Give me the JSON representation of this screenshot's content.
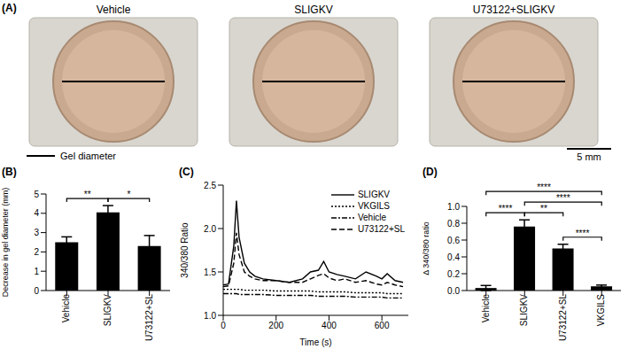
{
  "panel_a": {
    "title": "(A)",
    "panels": [
      "Vehicle",
      "SLIGKV",
      "U73122+SLIGKV"
    ],
    "legend_label": "Gel diameter",
    "scale_bar": "5 mm"
  },
  "chart_data": [
    {
      "type": "bar",
      "title": "(B)",
      "y_label": "Decrease in gel diameter (mm)",
      "categories": [
        "Vehicle",
        "SLIGKV",
        "U73122+SL"
      ],
      "values": [
        2.5,
        4.05,
        2.3
      ],
      "errors": [
        0.28,
        0.35,
        0.55
      ],
      "color": "#000000",
      "ylim": [
        0,
        5
      ],
      "yticks": [
        0,
        1,
        2,
        3,
        4,
        5
      ],
      "annotations": [
        {
          "between": [
            "Vehicle",
            "SLIGKV"
          ],
          "label": "**"
        },
        {
          "between": [
            "SLIGKV",
            "U73122+SL"
          ],
          "label": "*"
        }
      ]
    },
    {
      "type": "line",
      "title": "(C)",
      "x_label": "Time (s)",
      "y_label": "340/380 Ratio",
      "x": [
        0,
        20,
        40,
        50,
        60,
        80,
        100,
        120,
        150,
        200,
        250,
        300,
        330,
        360,
        380,
        400,
        430,
        460,
        500,
        540,
        580,
        600,
        620,
        650,
        680
      ],
      "xlim": [
        0,
        700
      ],
      "xticks": [
        0,
        200,
        400,
        600
      ],
      "ylim": [
        1.0,
        2.5
      ],
      "yticks": [
        {
          "value": 1.0,
          "label": "1.0"
        },
        1.5,
        {
          "value": 2.0,
          "label": "2.0"
        },
        2.5
      ],
      "legend": "upper right",
      "series": [
        {
          "name": "SLIGKV",
          "color": "#000000",
          "line_style": "solid",
          "values": [
            1.35,
            1.36,
            1.8,
            2.32,
            1.9,
            1.6,
            1.5,
            1.45,
            1.42,
            1.4,
            1.38,
            1.42,
            1.5,
            1.52,
            1.62,
            1.5,
            1.47,
            1.45,
            1.42,
            1.5,
            1.45,
            1.42,
            1.48,
            1.4,
            1.38
          ]
        },
        {
          "name": "VKGILS",
          "color": "#000000",
          "line_style": "dotted",
          "values": [
            1.3,
            1.3,
            1.3,
            1.3,
            1.3,
            1.29,
            1.29,
            1.29,
            1.29,
            1.28,
            1.28,
            1.28,
            1.28,
            1.27,
            1.27,
            1.27,
            1.27,
            1.27,
            1.26,
            1.26,
            1.26,
            1.26,
            1.25,
            1.25,
            1.25
          ]
        },
        {
          "name": "Vehicle",
          "color": "#000000",
          "line_style": "dashdot",
          "values": [
            1.25,
            1.25,
            1.25,
            1.25,
            1.24,
            1.24,
            1.24,
            1.24,
            1.24,
            1.23,
            1.23,
            1.23,
            1.23,
            1.22,
            1.22,
            1.22,
            1.22,
            1.22,
            1.21,
            1.21,
            1.21,
            1.21,
            1.2,
            1.2,
            1.2
          ]
        },
        {
          "name": "U73122+SL",
          "color": "#000000",
          "line_style": "dashed",
          "values": [
            1.33,
            1.34,
            1.6,
            1.95,
            1.7,
            1.5,
            1.45,
            1.42,
            1.4,
            1.4,
            1.38,
            1.38,
            1.42,
            1.46,
            1.48,
            1.43,
            1.4,
            1.42,
            1.38,
            1.4,
            1.36,
            1.35,
            1.38,
            1.35,
            1.33
          ]
        }
      ]
    },
    {
      "type": "bar",
      "title": "(D)",
      "y_label": "Δ 340/380 ratio",
      "categories": [
        "Vehicle",
        "SLIGKV",
        "U73122+SL",
        "VKGILS"
      ],
      "values": [
        0.03,
        0.76,
        0.5,
        0.05
      ],
      "errors": [
        0.03,
        0.08,
        0.05,
        0.015
      ],
      "color": "#000000",
      "ylim": [
        0,
        1.0
      ],
      "yticks": [
        {
          "value": 0,
          "label": "0.0"
        },
        0.2,
        0.4,
        0.6,
        0.8,
        {
          "value": 1.0,
          "label": "1.0"
        }
      ],
      "annotations": [
        {
          "between": [
            "U73122+SL",
            "VKGILS"
          ],
          "label": "****"
        },
        {
          "between": [
            "SLIGKV",
            "U73122+SL"
          ],
          "label": "**"
        },
        {
          "between": [
            "SLIGKV",
            "VKGILS"
          ],
          "label": "****"
        },
        {
          "between": [
            "Vehicle",
            "SLIGKV"
          ],
          "label": "****"
        },
        {
          "between": [
            "Vehicle",
            "VKGILS"
          ],
          "label": "****"
        }
      ]
    }
  ]
}
